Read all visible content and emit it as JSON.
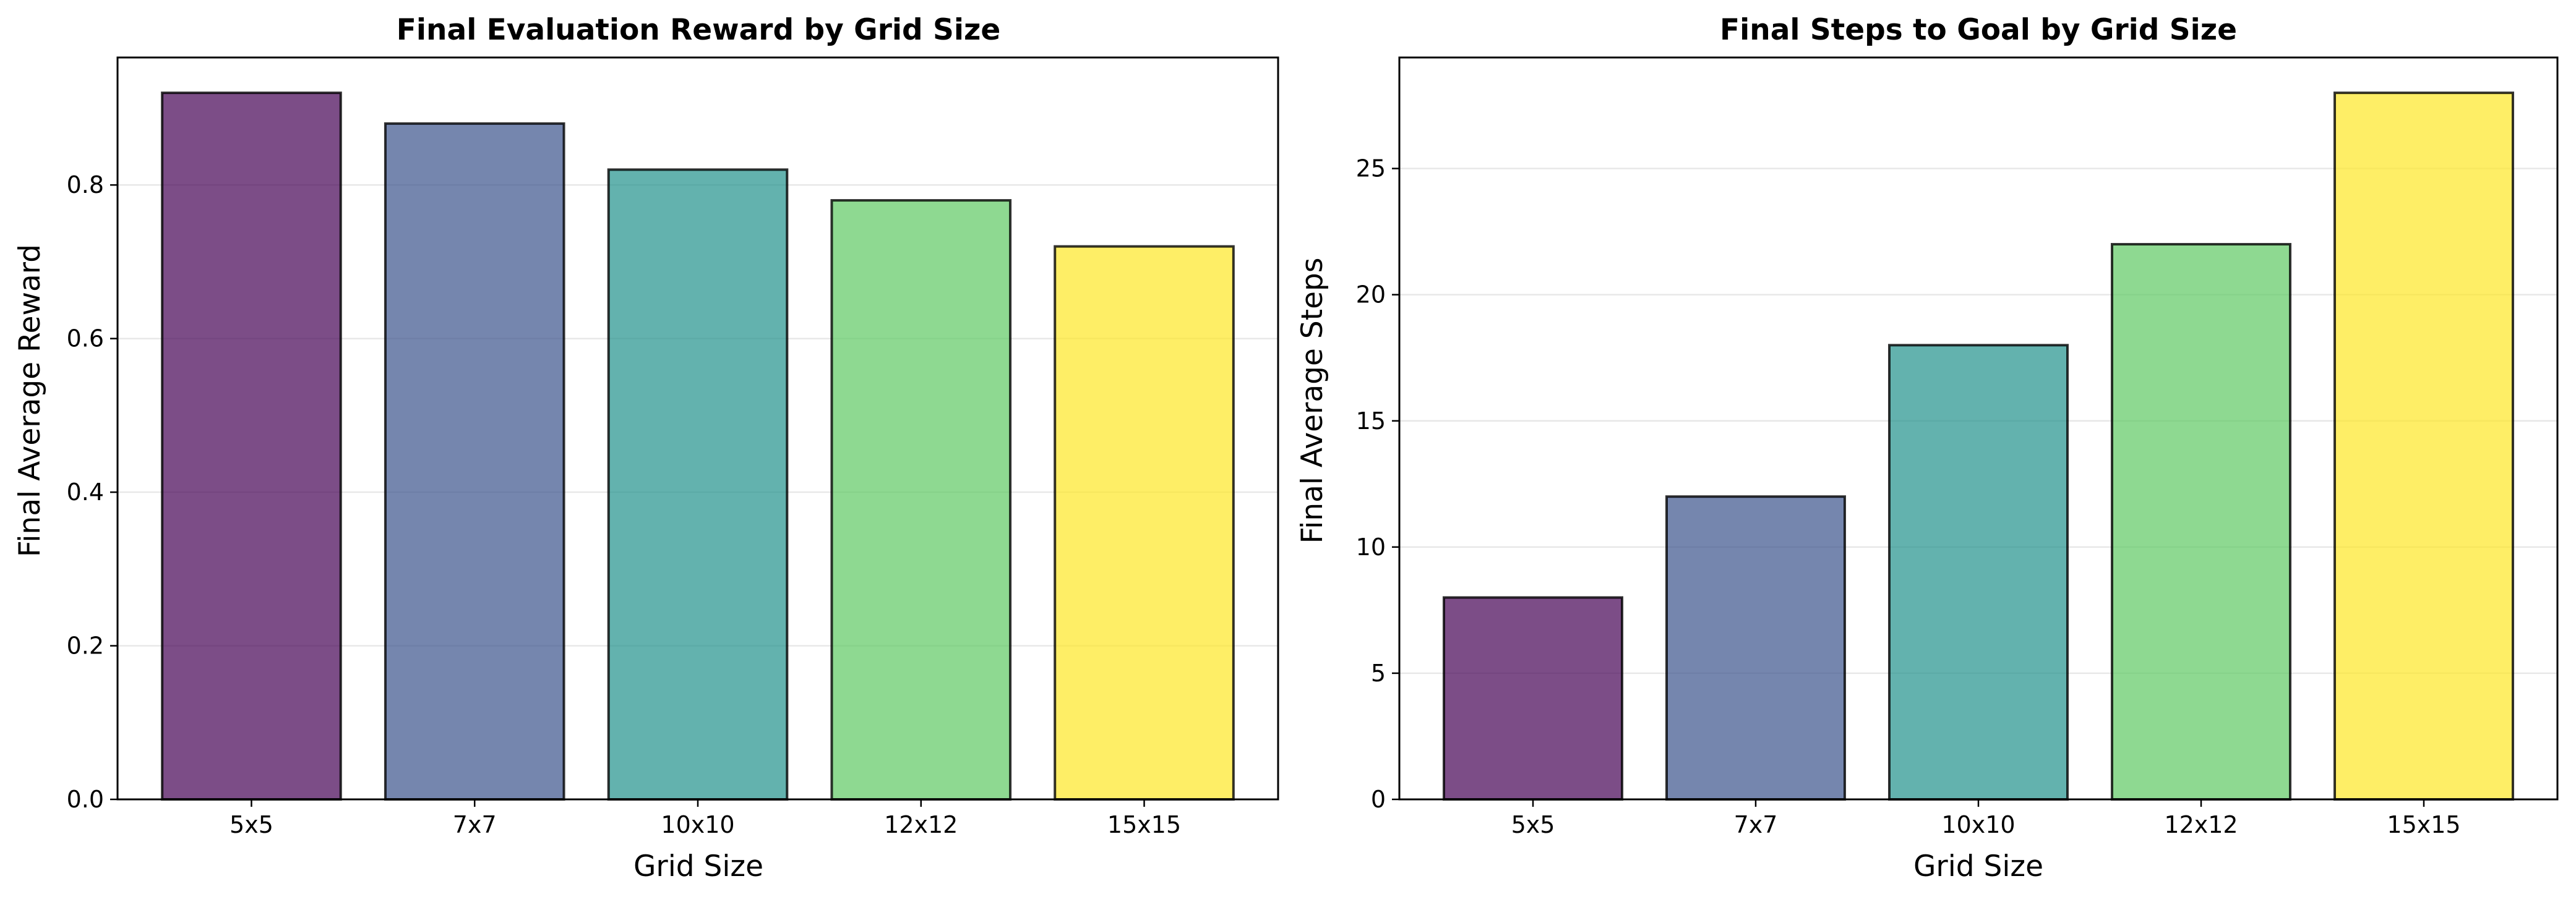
{
  "chart_data": [
    {
      "type": "bar",
      "title": "Final Evaluation Reward by Grid Size",
      "xlabel": "Grid Size",
      "ylabel": "Final Average Reward",
      "categories": [
        "5x5",
        "7x7",
        "10x10",
        "12x12",
        "15x15"
      ],
      "values": [
        0.92,
        0.88,
        0.82,
        0.78,
        0.72
      ],
      "colors": [
        "#440154",
        "#3b528b",
        "#21918c",
        "#5ec962",
        "#fde725"
      ],
      "ylim": [
        0,
        0.966
      ],
      "yticks": [
        0.0,
        0.2,
        0.4,
        0.6,
        0.8
      ],
      "ytick_labels": [
        "0.0",
        "0.2",
        "0.4",
        "0.6",
        "0.8"
      ],
      "grid": "y"
    },
    {
      "type": "bar",
      "title": "Final Steps to Goal by Grid Size",
      "xlabel": "Grid Size",
      "ylabel": "Final Average Steps",
      "categories": [
        "5x5",
        "7x7",
        "10x10",
        "12x12",
        "15x15"
      ],
      "values": [
        8,
        12,
        18,
        22,
        28
      ],
      "colors": [
        "#440154",
        "#3b528b",
        "#21918c",
        "#5ec962",
        "#fde725"
      ],
      "ylim": [
        0,
        29.4
      ],
      "yticks": [
        0,
        5,
        10,
        15,
        20,
        25
      ],
      "ytick_labels": [
        "0",
        "5",
        "10",
        "15",
        "20",
        "25"
      ],
      "grid": "y"
    }
  ]
}
